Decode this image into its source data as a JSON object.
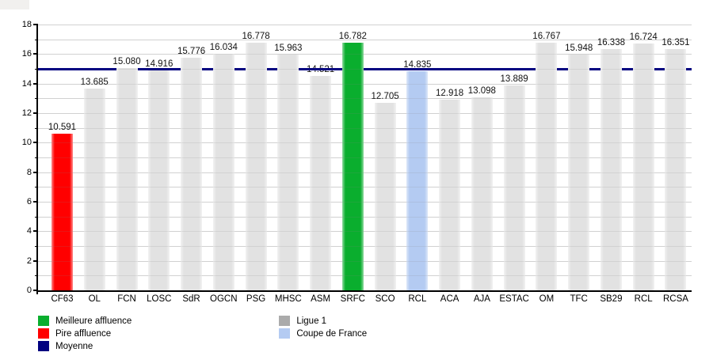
{
  "chart_data": {
    "type": "bar",
    "title": "",
    "xlabel": "",
    "ylabel": "",
    "categories": [
      "CF63",
      "OL",
      "FCN",
      "LOSC",
      "SdR",
      "OGCN",
      "PSG",
      "MHSC",
      "ASM",
      "SRFC",
      "SCO",
      "RCL",
      "ACA",
      "AJA",
      "ESTAC",
      "OM",
      "TFC",
      "SB29",
      "RCL",
      "RCSA"
    ],
    "values": [
      10.591,
      13.685,
      15.08,
      14.916,
      15.776,
      16.034,
      16.778,
      15.963,
      14.521,
      16.782,
      12.705,
      14.835,
      12.918,
      13.098,
      13.889,
      16.767,
      15.948,
      16.338,
      16.724,
      16.351
    ],
    "value_labels": [
      "10.591",
      "13.685",
      "15.080",
      "14.916",
      "15.776",
      "16.034",
      "16.778",
      "15.963",
      "14.521",
      "16.782",
      "12.705",
      "14.835",
      "12.918",
      "13.098",
      "13.889",
      "16.767",
      "15.948",
      "16.338",
      "16.724",
      "16.351"
    ],
    "bar_series": [
      "pire",
      "ligue1",
      "ligue1",
      "ligue1",
      "ligue1",
      "ligue1",
      "ligue1",
      "ligue1",
      "ligue1",
      "meilleure",
      "ligue1",
      "coupe",
      "ligue1",
      "ligue1",
      "ligue1",
      "ligue1",
      "ligue1",
      "ligue1",
      "ligue1",
      "ligue1"
    ],
    "mean_value": 14.985,
    "ylim": [
      0,
      18
    ],
    "y_major_tick_labels": [
      "0",
      "2",
      "4",
      "6",
      "8",
      "10",
      "12",
      "14",
      "16",
      "18"
    ],
    "grid": "horizontal gridlines every 1 unit",
    "legend_position": "bottom, two columns"
  },
  "legend": {
    "meilleure": "Meilleure affluence",
    "pire": "Pire affluence",
    "moyenne": "Moyenne",
    "ligue1": "Ligue 1",
    "coupe": "Coupe de France"
  },
  "colors": {
    "meilleure": "#0aae2e",
    "pire": "#ff0000",
    "moyenne": "#000080",
    "ligue1_bar": "#e2e2e2",
    "ligue1_legend": "#ababab",
    "coupe": "#b4cbf2",
    "grid": "#e0e0e0",
    "axis": "#000000",
    "text": "#000000"
  }
}
